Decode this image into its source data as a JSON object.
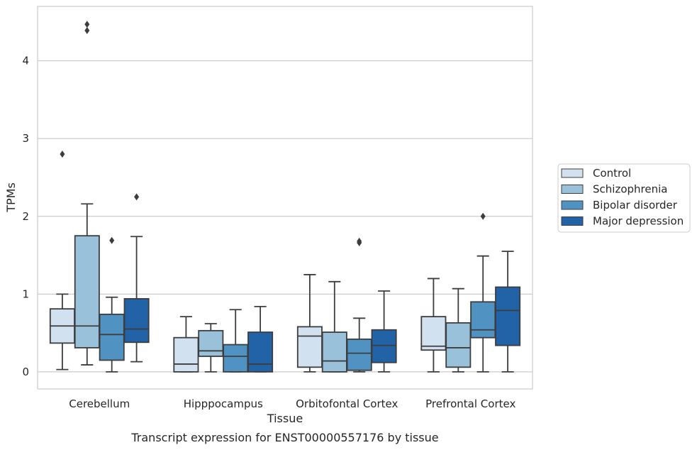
{
  "chart_data": {
    "type": "box",
    "title": "",
    "caption": "Transcript expression for ENST00000557176 by tissue",
    "xlabel": "Tissue",
    "ylabel": "TPMs",
    "ylim": [
      -0.22,
      4.7
    ],
    "yticks": [
      0,
      1,
      2,
      3,
      4
    ],
    "grid": "horizontal",
    "legend_position": "right",
    "categories": [
      "Cerebellum",
      "Hipppocampus",
      "Orbitofontal Cortex",
      "Prefrontal Cortex"
    ],
    "series": [
      {
        "name": "Control",
        "color": "#d2e1f0",
        "boxes": [
          {
            "whislo": 0.03,
            "q1": 0.37,
            "med": 0.59,
            "q3": 0.81,
            "whishi": 1.0,
            "fliers": [
              2.8
            ]
          },
          {
            "whislo": 0.0,
            "q1": 0.0,
            "med": 0.1,
            "q3": 0.44,
            "whishi": 0.71,
            "fliers": []
          },
          {
            "whislo": 0.0,
            "q1": 0.06,
            "med": 0.46,
            "q3": 0.58,
            "whishi": 1.25,
            "fliers": []
          },
          {
            "whislo": 0.0,
            "q1": 0.28,
            "med": 0.33,
            "q3": 0.71,
            "whishi": 1.2,
            "fliers": []
          }
        ]
      },
      {
        "name": "Schizophrenia",
        "color": "#9ac1da",
        "boxes": [
          {
            "whislo": 0.09,
            "q1": 0.31,
            "med": 0.59,
            "q3": 1.75,
            "whishi": 2.16,
            "fliers": [
              4.39,
              4.47
            ]
          },
          {
            "whislo": 0.0,
            "q1": 0.2,
            "med": 0.27,
            "q3": 0.53,
            "whishi": 0.62,
            "fliers": []
          },
          {
            "whislo": 0.0,
            "q1": 0.0,
            "med": 0.14,
            "q3": 0.51,
            "whishi": 1.16,
            "fliers": []
          },
          {
            "whislo": 0.0,
            "q1": 0.06,
            "med": 0.31,
            "q3": 0.63,
            "whishi": 1.07,
            "fliers": []
          }
        ]
      },
      {
        "name": "Bipolar disorder",
        "color": "#5093c3",
        "boxes": [
          {
            "whislo": 0.0,
            "q1": 0.15,
            "med": 0.48,
            "q3": 0.74,
            "whishi": 0.96,
            "fliers": [
              1.69
            ]
          },
          {
            "whislo": 0.0,
            "q1": 0.0,
            "med": 0.2,
            "q3": 0.35,
            "whishi": 0.8,
            "fliers": []
          },
          {
            "whislo": 0.0,
            "q1": 0.02,
            "med": 0.24,
            "q3": 0.42,
            "whishi": 0.69,
            "fliers": [
              1.66,
              1.68
            ]
          },
          {
            "whislo": 0.0,
            "q1": 0.44,
            "med": 0.54,
            "q3": 0.9,
            "whishi": 1.49,
            "fliers": [
              2.0
            ]
          }
        ]
      },
      {
        "name": "Major depression",
        "color": "#2263a8",
        "boxes": [
          {
            "whislo": 0.13,
            "q1": 0.38,
            "med": 0.55,
            "q3": 0.94,
            "whishi": 1.74,
            "fliers": [
              2.25
            ]
          },
          {
            "whislo": 0.0,
            "q1": 0.0,
            "med": 0.1,
            "q3": 0.51,
            "whishi": 0.84,
            "fliers": []
          },
          {
            "whislo": 0.0,
            "q1": 0.12,
            "med": 0.34,
            "q3": 0.54,
            "whishi": 1.04,
            "fliers": []
          },
          {
            "whislo": 0.0,
            "q1": 0.34,
            "med": 0.79,
            "q3": 1.09,
            "whishi": 1.55,
            "fliers": []
          }
        ]
      }
    ]
  }
}
